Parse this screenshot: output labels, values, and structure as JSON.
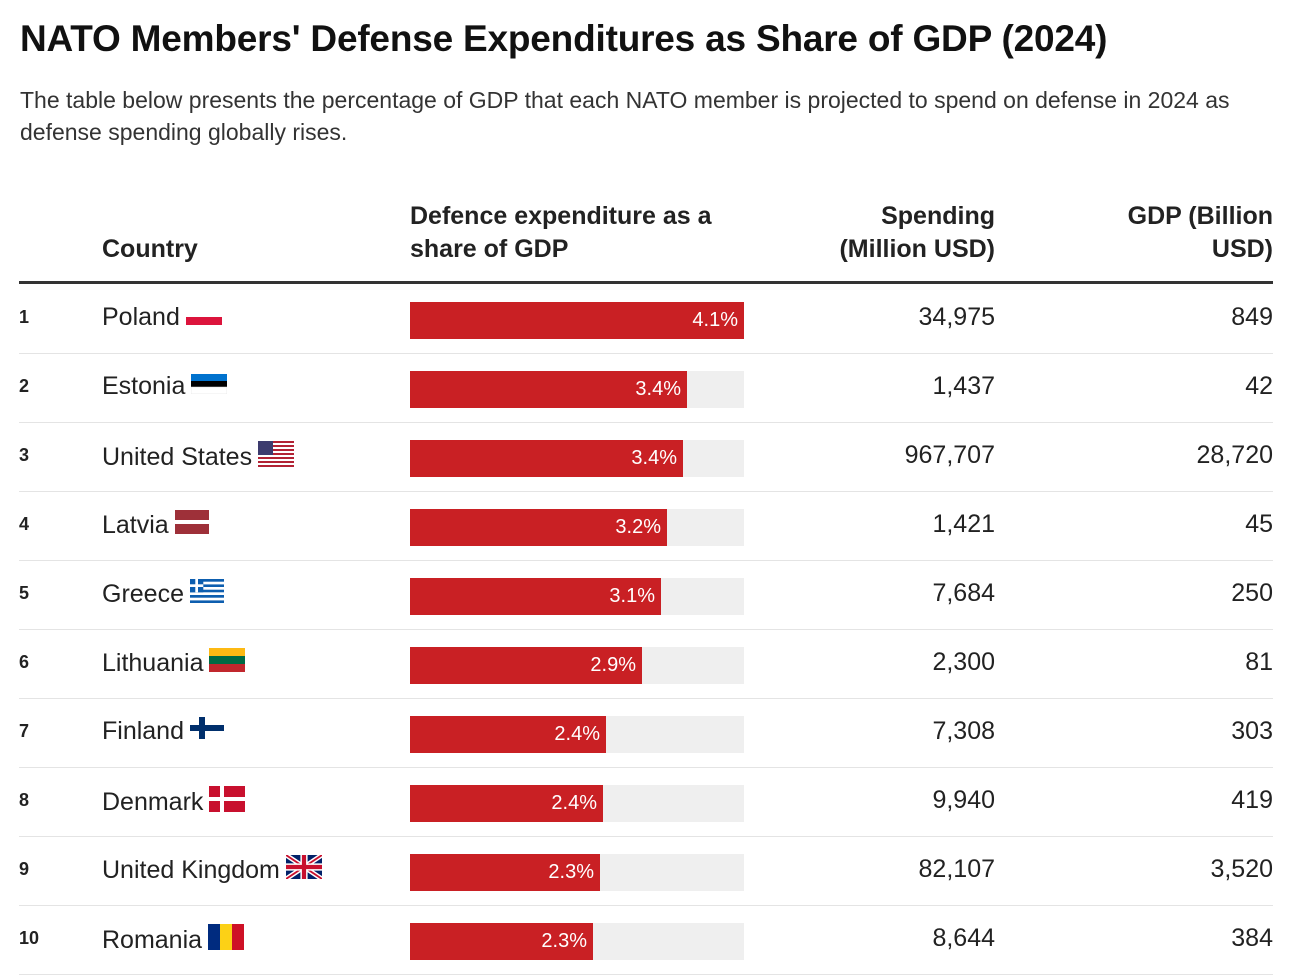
{
  "title": "NATO Members' Defense Expenditures as Share of GDP (2024)",
  "subtitle": "The table below presents the percentage of GDP that each NATO member is projected to spend on defense in 2024 as defense spending globally rises.",
  "colors": {
    "bar": "#c92024",
    "track": "#efefef"
  },
  "chart_data": {
    "type": "table",
    "columns": [
      "Country",
      "Defence expenditure as a share of GDP",
      "Spending (Million USD)",
      "GDP (Billion USD)"
    ],
    "bar_max": 4.1,
    "rows": [
      {
        "rank": "1",
        "country": "Poland",
        "flag": "poland-flag",
        "share": 4.1,
        "share_label": "4.1%",
        "spending": "34,975",
        "gdp": "849"
      },
      {
        "rank": "2",
        "country": "Estonia",
        "flag": "estonia-flag",
        "share": 3.4,
        "share_label": "3.4%",
        "spending": "1,437",
        "gdp": "42"
      },
      {
        "rank": "3",
        "country": "United States",
        "flag": "usa-flag",
        "share": 3.35,
        "share_label": "3.4%",
        "spending": "967,707",
        "gdp": "28,720"
      },
      {
        "rank": "4",
        "country": "Latvia",
        "flag": "latvia-flag",
        "share": 3.15,
        "share_label": "3.2%",
        "spending": "1,421",
        "gdp": "45"
      },
      {
        "rank": "5",
        "country": "Greece",
        "flag": "greece-flag",
        "share": 3.08,
        "share_label": "3.1%",
        "spending": "7,684",
        "gdp": "250"
      },
      {
        "rank": "6",
        "country": "Lithuania",
        "flag": "lithuania-flag",
        "share": 2.85,
        "share_label": "2.9%",
        "spending": "2,300",
        "gdp": "81"
      },
      {
        "rank": "7",
        "country": "Finland",
        "flag": "finland-flag",
        "share": 2.41,
        "share_label": "2.4%",
        "spending": "7,308",
        "gdp": "303"
      },
      {
        "rank": "8",
        "country": "Denmark",
        "flag": "denmark-flag",
        "share": 2.37,
        "share_label": "2.4%",
        "spending": "9,940",
        "gdp": "419"
      },
      {
        "rank": "9",
        "country": "United Kingdom",
        "flag": "uk-flag",
        "share": 2.33,
        "share_label": "2.3%",
        "spending": "82,107",
        "gdp": "3,520"
      },
      {
        "rank": "10",
        "country": "Romania",
        "flag": "romania-flag",
        "share": 2.25,
        "share_label": "2.3%",
        "spending": "8,644",
        "gdp": "384"
      }
    ]
  }
}
